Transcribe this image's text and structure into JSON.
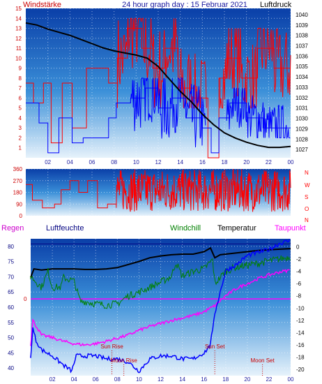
{
  "header": {
    "left": "Windstärke",
    "center": "24 hour graph day : 15 Februar 2021",
    "right": "Luftdruck"
  },
  "colors": {
    "wind_fill_top": "#0a3fa8",
    "wind_fill_bottom": "#e6f2fb",
    "wind_gust": "#ff0000",
    "wind_avg": "#0000ff",
    "pressure": "#000000",
    "direction": "#ff0000",
    "temperature": "#000000",
    "windchill": "#008000",
    "dewpoint": "#ff00ff",
    "humidity": "#0000ff",
    "rain": "#0000ff",
    "rain_zero_line": "#ff00ff",
    "sun_moon": "#cc0000"
  },
  "chart_data": [
    {
      "type": "line",
      "title": "24 hour graph day : 15 Februar 2021",
      "x_ticks": [
        "02",
        "04",
        "06",
        "08",
        "10",
        "12",
        "14",
        "16",
        "18",
        "20",
        "22",
        "00"
      ],
      "y_left_label": "Windstärke",
      "y_left_ticks": [
        1,
        2,
        3,
        4,
        5,
        6,
        7,
        8,
        9,
        10,
        11,
        12,
        13,
        14,
        15
      ],
      "y_left_range": [
        0,
        15
      ],
      "y_right_label": "Luftdruck",
      "y_right_ticks": [
        1027,
        1028,
        1029,
        1030,
        1031,
        1032,
        1033,
        1034,
        1035,
        1036,
        1037,
        1038,
        1039,
        1040
      ],
      "y_right_range": [
        1026.2,
        1040.6
      ],
      "grid": true,
      "series": [
        {
          "name": "gust",
          "hours": [
            0,
            0.7,
            0.7,
            1.6,
            1.6,
            2.3,
            2.3,
            3.3,
            3.3,
            4.2,
            4.2,
            5.5,
            5.5,
            7.5,
            7.5,
            8.3,
            8.3,
            9.2,
            9.2,
            10.5,
            10.5,
            11.5,
            11.5,
            12.6,
            12.6,
            13.8,
            13.8,
            15.2,
            15.2,
            16.5,
            16.5,
            17.5,
            17.5,
            18.2,
            18.2,
            19.5,
            19.5,
            21,
            21,
            22.5,
            22.5,
            24
          ],
          "values": [
            7.5,
            7.5,
            5.5,
            5.5,
            7.5,
            7.5,
            1.5,
            1.5,
            7.5,
            7.5,
            3,
            3,
            9,
            9,
            7.5,
            7.5,
            10,
            10,
            13,
            13,
            11,
            11,
            9,
            9,
            11,
            11,
            7,
            7,
            6,
            6,
            0,
            0,
            8,
            8,
            10,
            10,
            8,
            8,
            11,
            11,
            9,
            9
          ]
        },
        {
          "name": "average",
          "hours": [
            0,
            1.2,
            1.2,
            2,
            2,
            3,
            3,
            4.2,
            4.2,
            5.2,
            5.2,
            7.5,
            7.5,
            8.2,
            8.2,
            9.5,
            9.5,
            10.8,
            10.8,
            12,
            12,
            13.2,
            13.2,
            14.5,
            14.5,
            16,
            16,
            16.8,
            16.8,
            17.5,
            17.5,
            18.5,
            18.5,
            20,
            20,
            21.5,
            21.5,
            24
          ],
          "values": [
            5.5,
            5.5,
            3.5,
            3.5,
            0.5,
            0.5,
            4,
            4,
            1.5,
            1.5,
            2,
            2,
            4,
            4,
            5.5,
            5.5,
            6,
            6,
            7,
            7,
            5,
            5,
            6,
            6,
            4,
            4,
            3,
            3,
            0.5,
            0.5,
            4,
            4,
            5.5,
            5.5,
            4,
            4,
            3,
            3
          ]
        },
        {
          "name": "Luftdruck",
          "hours": [
            0,
            1,
            2,
            3,
            4,
            5,
            6,
            7,
            8,
            9,
            10,
            11,
            12,
            13,
            14,
            15,
            16,
            17,
            18,
            19,
            20,
            21,
            22,
            23,
            24
          ],
          "values": [
            1039.2,
            1039.0,
            1038.6,
            1038.3,
            1038.0,
            1037.6,
            1037.2,
            1036.8,
            1036.5,
            1036.3,
            1036.1,
            1035.8,
            1035.0,
            1033.8,
            1032.6,
            1031.6,
            1030.4,
            1029.4,
            1028.6,
            1028.1,
            1027.7,
            1027.4,
            1027.2,
            1027.2,
            1027.3
          ]
        }
      ]
    },
    {
      "type": "line",
      "x_range": [
        0,
        24
      ],
      "y_ticks": [
        0,
        90,
        180,
        270,
        360
      ],
      "y_range": [
        0,
        360
      ],
      "direction_labels": [
        "N",
        "W",
        "S",
        "O",
        "N"
      ],
      "series": [
        {
          "name": "direction",
          "hours": [
            0,
            0.6,
            0.6,
            1.5,
            1.5,
            2.6,
            2.6,
            3.2,
            3.2,
            4,
            4,
            4.8,
            4.8,
            5.6,
            5.6,
            6.5,
            6.5,
            7.4,
            7.4,
            8.2
          ],
          "values": [
            240,
            240,
            120,
            120,
            60,
            60,
            90,
            90,
            200,
            200,
            270,
            270,
            180,
            180,
            270,
            270,
            60,
            60,
            90,
            90
          ],
          "noisy_from_hour": 8.2,
          "noisy_range": [
            30,
            360
          ]
        }
      ]
    },
    {
      "type": "line",
      "legend": [
        "Regen",
        "Luftfeuchte",
        "Windchill",
        "Temperatur",
        "Taupunkt"
      ],
      "x_ticks": [
        "02",
        "04",
        "06",
        "08",
        "10",
        "12",
        "14",
        "16",
        "18",
        "20",
        "22",
        "00"
      ],
      "y_left_ticks": [
        40,
        45,
        50,
        55,
        60,
        65,
        70,
        75,
        80
      ],
      "y_left_range": [
        37.5,
        82.5
      ],
      "y_right_ticks": [
        0,
        -2,
        -4,
        -6,
        -8,
        -10,
        -12,
        -14,
        -16,
        -18,
        -20
      ],
      "y_right_range": [
        -21,
        1.3
      ],
      "zero_line_label": "0",
      "annotations": [
        {
          "text": "Sun Rise",
          "hour": 7.5
        },
        {
          "text": "Moon Rise",
          "hour": 8.6
        },
        {
          "text": "Sun Set",
          "hour": 17.0
        },
        {
          "text": "Moon Set",
          "hour": 21.4
        }
      ],
      "series": [
        {
          "name": "Temperatur",
          "hours": [
            0,
            0.3,
            1,
            2,
            4,
            5,
            6,
            7,
            8,
            9,
            10,
            11,
            12,
            13,
            14,
            15,
            16,
            16.6,
            17,
            17.5,
            18,
            19,
            20,
            21,
            22,
            23,
            24
          ],
          "values": [
            -5.0,
            -3.6,
            -3.8,
            -3.6,
            -3.6,
            -3.7,
            -3.7,
            -3.6,
            -3.4,
            -2.9,
            -2.4,
            -1.8,
            -1.5,
            -1.3,
            -1.2,
            -1.2,
            -0.8,
            -0.2,
            -1.8,
            -1.3,
            -1.2,
            -1.0,
            -0.8,
            -0.6,
            -0.5,
            -0.4,
            -0.3
          ]
        },
        {
          "name": "Windchill",
          "hours": [
            0,
            1,
            1.6,
            2,
            2.8,
            3,
            4,
            4.6,
            5,
            6,
            7,
            8,
            9,
            10,
            11,
            12,
            13,
            13.4,
            14,
            15,
            16,
            16.8,
            17,
            18,
            19,
            20,
            21,
            22,
            23,
            24
          ],
          "values": [
            -4.8,
            -6.6,
            -4.0,
            -6.6,
            -6.6,
            -5.0,
            -5.6,
            -9.0,
            -8.9,
            -9.3,
            -9.5,
            -9.3,
            -8.0,
            -7.4,
            -6.6,
            -5.8,
            -4.8,
            -2.5,
            -4.8,
            -4.0,
            -3.6,
            -2.1,
            -6.0,
            -4.0,
            -3.3,
            -3.0,
            -2.7,
            -2.3,
            -2.0,
            -1.6
          ]
        },
        {
          "name": "Taupunkt",
          "hours": [
            0,
            0.2,
            1,
            2,
            3,
            4,
            5,
            6,
            7,
            8,
            9,
            10,
            11,
            12,
            13,
            14,
            15,
            16,
            17,
            18,
            19,
            20,
            21,
            22,
            23,
            24
          ],
          "values": [
            -16.0,
            -12.0,
            -14.4,
            -14.8,
            -15.4,
            -15.8,
            -16.0,
            -15.8,
            -15.4,
            -14.9,
            -14.4,
            -13.6,
            -13.0,
            -12.5,
            -12.0,
            -11.6,
            -11.2,
            -10.6,
            -9.6,
            -8.0,
            -6.8,
            -6.0,
            -5.2,
            -4.6,
            -4.1,
            -3.8
          ]
        },
        {
          "name": "Luftfeuchte",
          "hours": [
            0,
            0.2,
            0.5,
            1,
            2,
            3,
            3.8,
            4.2,
            5,
            6,
            7,
            8,
            9,
            10,
            11,
            12,
            13,
            14,
            15,
            16,
            16.5,
            16.8,
            17,
            17.5,
            18,
            19,
            20,
            21,
            22,
            23,
            24
          ],
          "values": [
            44,
            53,
            49,
            46,
            44,
            41,
            39,
            44,
            44,
            44,
            43,
            43,
            42,
            39,
            43,
            44,
            44,
            43,
            43,
            45,
            47,
            52,
            58,
            65,
            72,
            74,
            77,
            78,
            79,
            81,
            82
          ]
        }
      ]
    }
  ]
}
